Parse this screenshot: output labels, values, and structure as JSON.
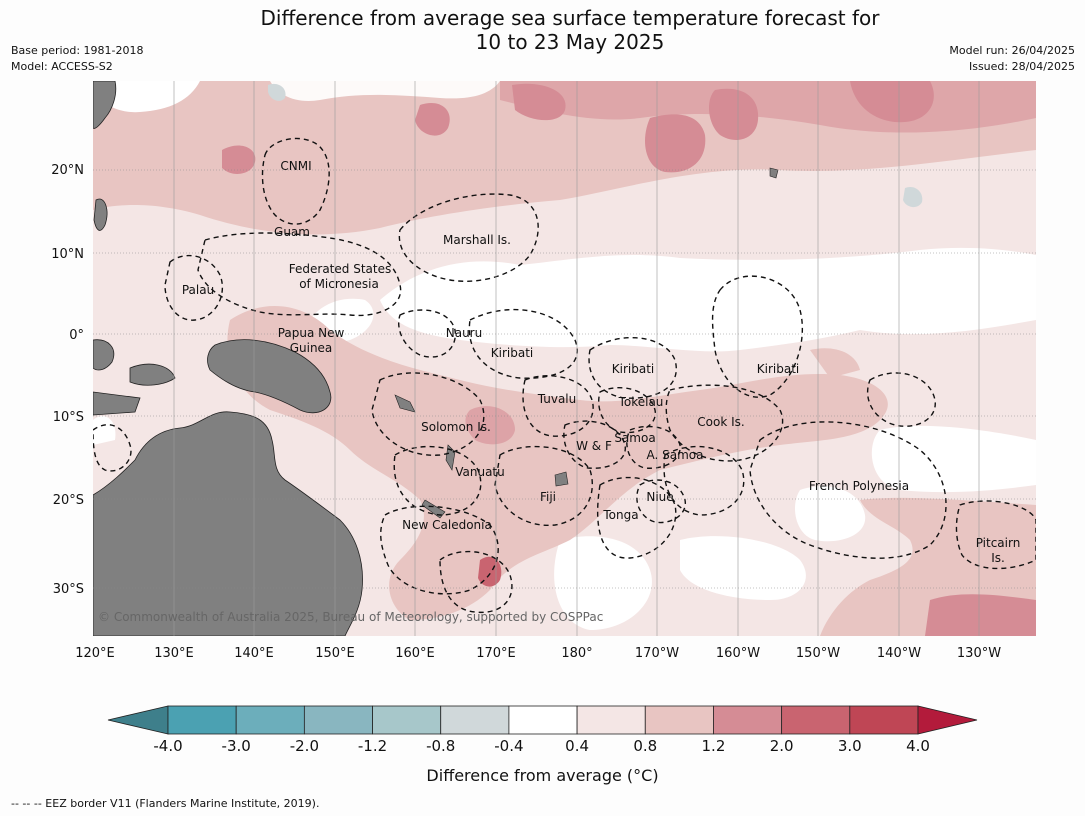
{
  "title": {
    "line1": "Difference from average sea surface temperature forecast for",
    "line2": "10 to 23 May 2025"
  },
  "meta_left": {
    "base_period": "Base period: 1981-2018",
    "model": "Model: ACCESS-S2"
  },
  "meta_right": {
    "model_run": "Model run: 26/04/2025",
    "issued": "Issued: 28/04/2025"
  },
  "map": {
    "lat_ticks": [
      "20°N",
      "10°N",
      "0°",
      "10°S",
      "20°S",
      "30°S"
    ],
    "lon_ticks": [
      "120°E",
      "130°E",
      "140°E",
      "150°E",
      "160°E",
      "170°E",
      "180°",
      "170°W",
      "160°W",
      "150°W",
      "140°W",
      "130°W"
    ],
    "labels": [
      {
        "text": "CNMI"
      },
      {
        "text": "Guam"
      },
      {
        "text": "Marshall Is."
      },
      {
        "text": "Federated States"
      },
      {
        "text": "of Micronesia"
      },
      {
        "text": "Palau"
      },
      {
        "text": "Papua New"
      },
      {
        "text": "Guinea"
      },
      {
        "text": "Nauru"
      },
      {
        "text": "Kiribati"
      },
      {
        "text": "Kiribati"
      },
      {
        "text": "Kiribati"
      },
      {
        "text": "Tuvalu"
      },
      {
        "text": "Tokelau"
      },
      {
        "text": "Cook Is."
      },
      {
        "text": "Solomon Is."
      },
      {
        "text": "Samoa"
      },
      {
        "text": "W & F"
      },
      {
        "text": "A. Samoa"
      },
      {
        "text": "Vanuatu"
      },
      {
        "text": "Fiji"
      },
      {
        "text": "Niue"
      },
      {
        "text": "French Polynesia"
      },
      {
        "text": "Tonga"
      },
      {
        "text": "New Caledonia"
      },
      {
        "text": "Pitcairn"
      },
      {
        "text": "Is."
      }
    ],
    "copyright": "© Commonwealth of Australia 2025, Bureau of Meteorology, supported by COSPPac",
    "colors": {
      "land": "#808080",
      "ocean_neutral": "#ffffff",
      "warm_0_4": "#f4e6e5",
      "warm_0_8": "#e8c5c2",
      "warm_1_2": "#d58c95",
      "warm_2_0": "#c96470",
      "cool_0_4": "#d0d8da"
    }
  },
  "colorbar": {
    "ticks": [
      "-4.0",
      "-3.0",
      "-2.0",
      "-1.2",
      "-0.8",
      "-0.4",
      "0.4",
      "0.8",
      "1.2",
      "2.0",
      "3.0",
      "4.0"
    ],
    "colors": [
      "#3e7f8b",
      "#4ba1b2",
      "#6caebb",
      "#89b6c0",
      "#a7c7ca",
      "#d0d8da",
      "#ffffff",
      "#f4e6e5",
      "#e8c5c2",
      "#d58c95",
      "#c96470",
      "#bf4655",
      "#b31b3b"
    ],
    "label": "Difference from average (°C)"
  },
  "footnote": "-- -- -- EEZ border V11 (Flanders Marine Institute, 2019)."
}
